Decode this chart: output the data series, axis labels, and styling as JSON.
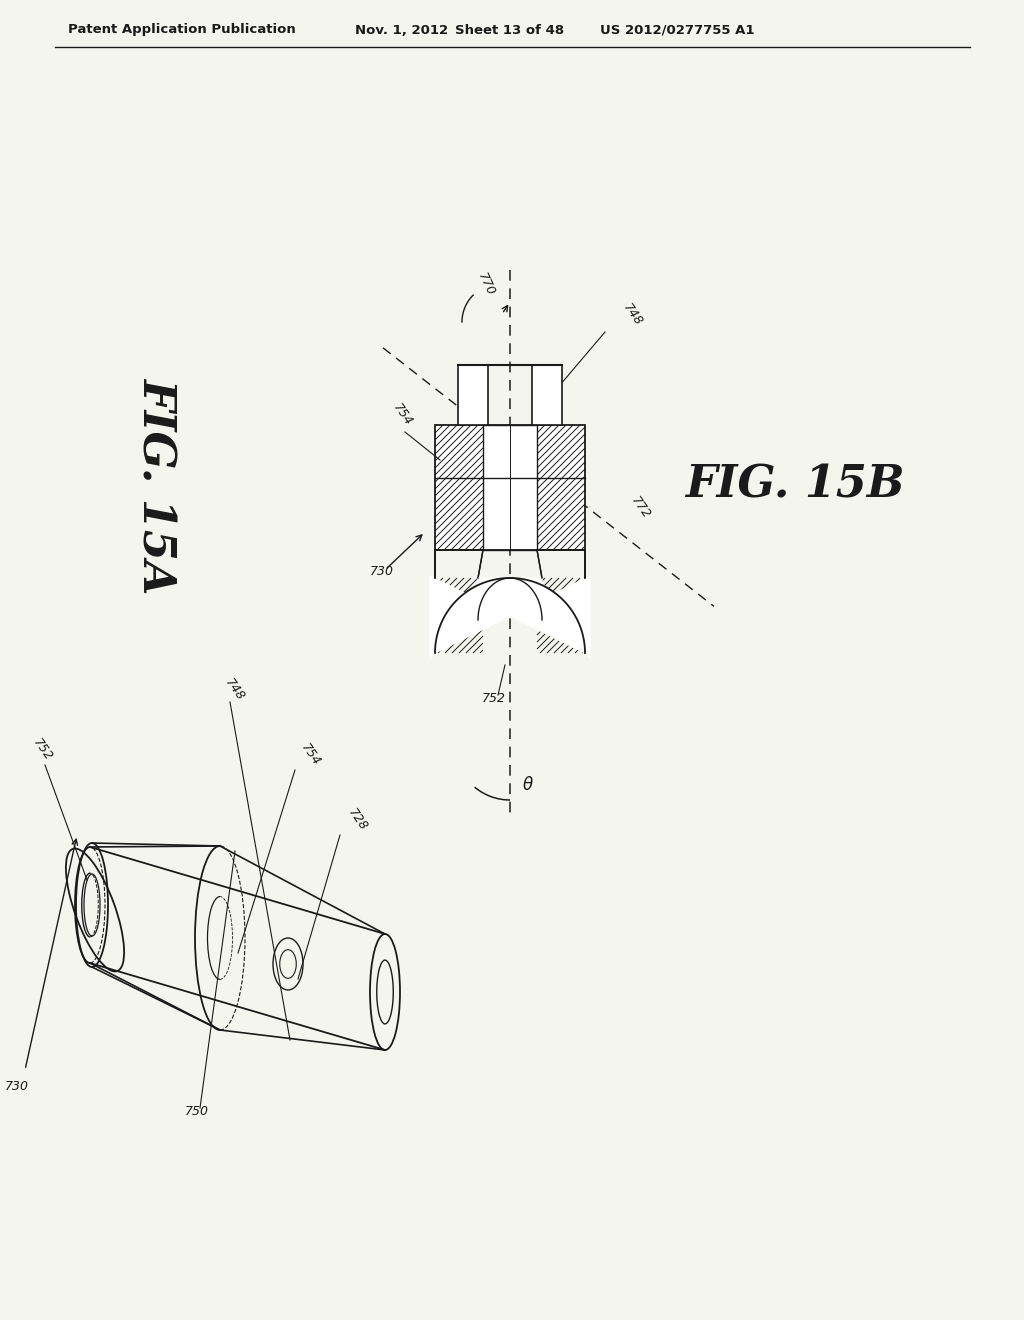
{
  "bg_color": "#f5f5f0",
  "header_text": "Patent Application Publication",
  "header_date": "Nov. 1, 2012",
  "header_sheet": "Sheet 13 of 48",
  "header_patent": "US 2012/0277755 A1",
  "fig15a_label": "FIG. 15A",
  "fig15b_label": "FIG. 15B",
  "line_color": "#1a1a1a",
  "hatch_color": "#444444",
  "label_color": "#222222"
}
